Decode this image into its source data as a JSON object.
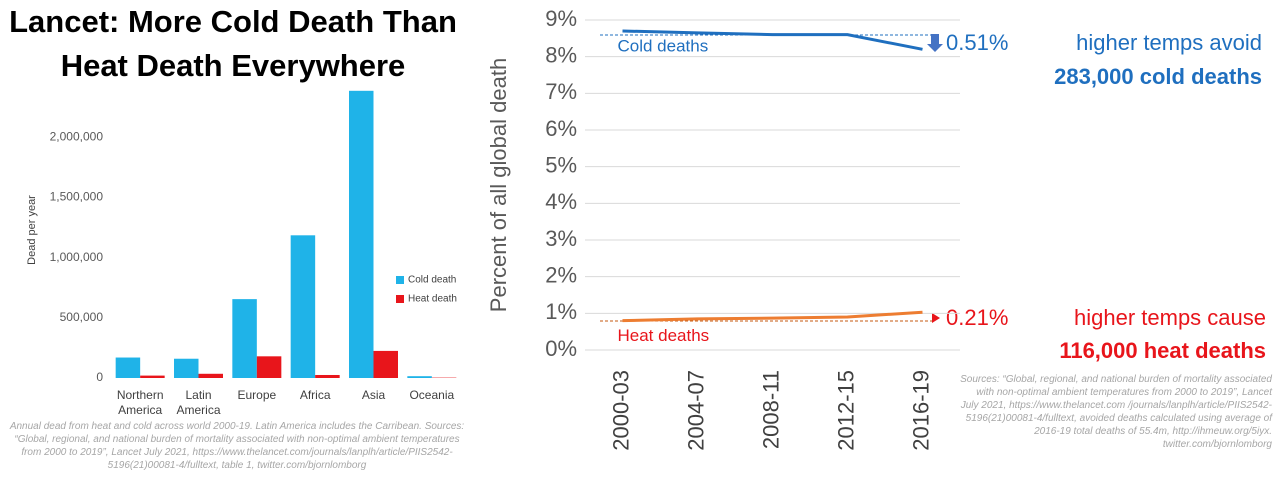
{
  "chart_data": [
    {
      "type": "bar",
      "title": "Lancet: More Cold Death Than Heat Death Everywhere",
      "y_label": "Dead per year",
      "categories": [
        "Northern America",
        "Latin America",
        "Europe",
        "Africa",
        "Asia",
        "Oceania"
      ],
      "series": [
        {
          "name": "Cold death",
          "color": "#1fb3e8",
          "values": [
            170000,
            160000,
            655000,
            1185000,
            2385000,
            15000
          ]
        },
        {
          "name": "Heat death",
          "color": "#e8151b",
          "values": [
            20000,
            35000,
            180000,
            25000,
            225000,
            3000
          ]
        }
      ],
      "ylim": [
        0,
        2400000
      ],
      "yticks": [
        0,
        {
          "value": 500000,
          "label": "500,000"
        },
        {
          "value": 1000000,
          "label": "1,000,000"
        },
        {
          "value": 1500000,
          "label": "1,500,000"
        },
        {
          "value": 2000000,
          "label": "2,000,000"
        }
      ],
      "grid": false,
      "legend": "right",
      "footnote": "Annual dead from heat and cold across world 2000-19. Latin America includes the Carribean. Sources: “Global, regional, and national burden of mortality associated with non-optimal ambient temperatures from 2000 to 2019”, Lancet July 2021, https://www.thelancet.com/journals/lanplh/article/PIIS2542-5196(21)00081-4/fulltext, table 1, twitter.com/bjornlomborg"
    },
    {
      "type": "line",
      "y_label": "Percent of all global death",
      "categories": [
        "2000-03",
        "2004-07",
        "2008-11",
        "2012-15",
        "2016-19"
      ],
      "series": [
        {
          "name": "Cold deaths",
          "color": "#1f6fbf",
          "values": [
            8.7,
            8.65,
            8.6,
            8.6,
            8.2
          ]
        },
        {
          "name": "Heat deaths",
          "color": "#ed7d31",
          "values": [
            0.8,
            0.85,
            0.87,
            0.9,
            1.03
          ]
        }
      ],
      "ylim": [
        0,
        9
      ],
      "yticks": [
        {
          "value": 0,
          "label": "0%"
        },
        {
          "value": 1,
          "label": "1%"
        },
        {
          "value": 2,
          "label": "2%"
        },
        {
          "value": 3,
          "label": "3%"
        },
        {
          "value": 4,
          "label": "4%"
        },
        {
          "value": 5,
          "label": "5%"
        },
        {
          "value": 6,
          "label": "6%"
        },
        {
          "value": 7,
          "label": "7%"
        },
        {
          "value": 8,
          "label": "8%"
        },
        {
          "value": 9,
          "label": "9%"
        }
      ],
      "grid": true,
      "annotations": [
        "0.51%",
        "higher temps avoid",
        "283,000 cold deaths",
        "0.21%",
        "higher temps cause",
        "116,000 heat deaths"
      ],
      "footnote": "Sources: “Global, regional, and national burden of mortality associated with non-optimal ambient temperatures from 2000 to 2019”, Lancet July 2021, https://www.thelancet.com /journals/lanplh/article/PIIS2542-5196(21)00081-4/fulltext, avoided deaths calculated using average of 2016-19 total deaths of 55.4m, http://ihmeuw.org/5iyx. twitter.com/bjornlomborg"
    }
  ]
}
